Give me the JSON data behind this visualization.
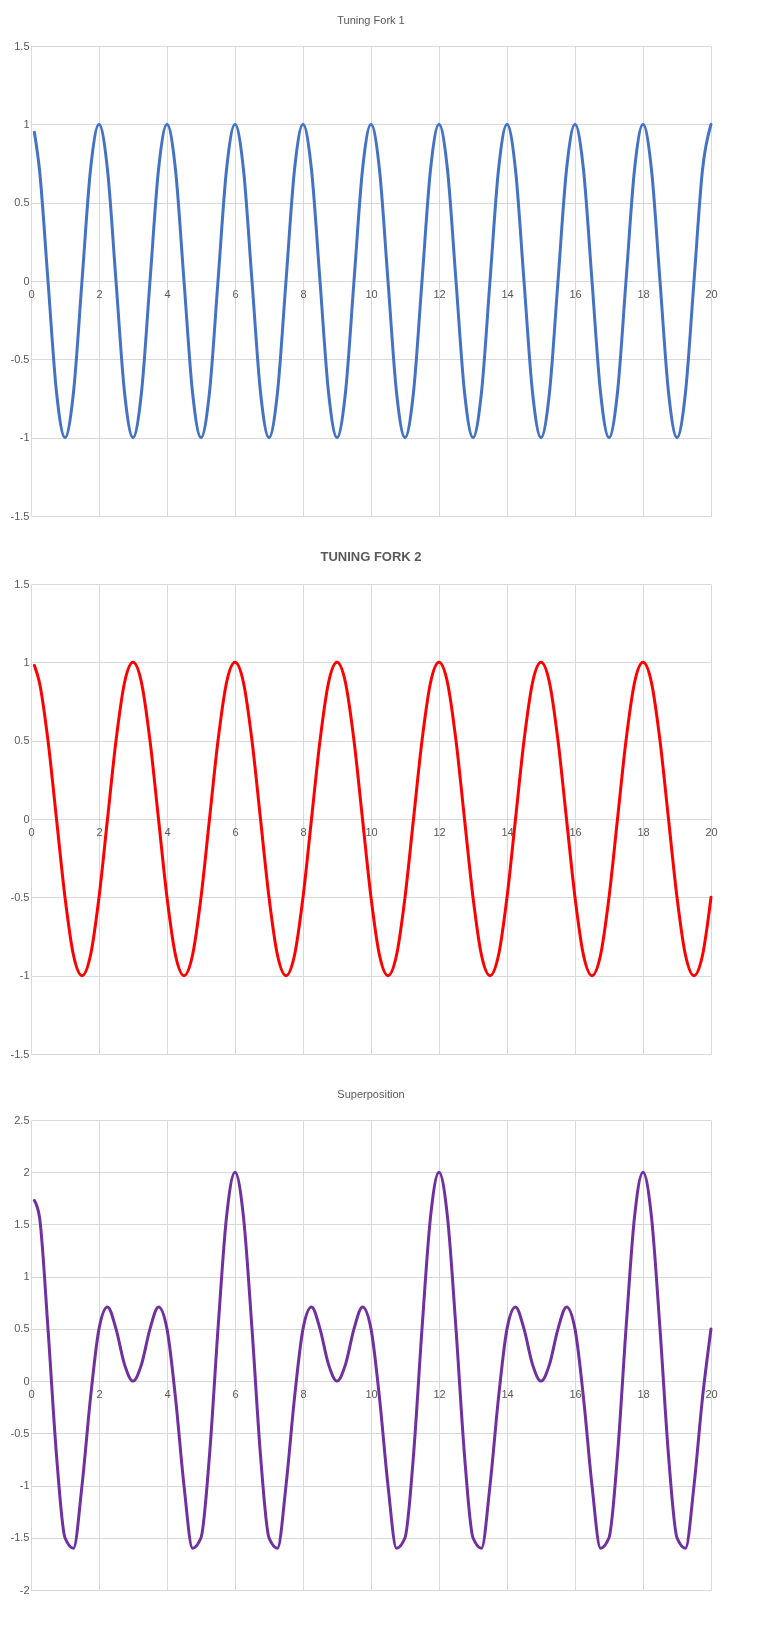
{
  "chart_data": [
    {
      "type": "line",
      "title": "Tuning Fork 1",
      "grid": true,
      "xlim": [
        0,
        20
      ],
      "xticks": [
        0,
        2,
        4,
        6,
        8,
        10,
        12,
        14,
        16,
        18,
        20
      ],
      "ylim": [
        -1.5,
        1.5
      ],
      "yticks": [
        -1.5,
        -1,
        -0.5,
        0,
        0.5,
        1,
        1.5
      ],
      "x": [
        0.1,
        0.25,
        0.5,
        0.75,
        1,
        1.25,
        1.5,
        1.75,
        2,
        2.25,
        2.5,
        2.75,
        3,
        3.25,
        3.5,
        3.75,
        4,
        4.25,
        4.5,
        4.75,
        5,
        5.25,
        5.5,
        5.75,
        6,
        6.25,
        6.5,
        6.75,
        7,
        7.25,
        7.5,
        7.75,
        8,
        8.25,
        8.5,
        8.75,
        9,
        9.25,
        9.5,
        9.75,
        10,
        10.25,
        10.5,
        10.75,
        11,
        11.25,
        11.5,
        11.75,
        12,
        12.25,
        12.5,
        12.75,
        13,
        13.25,
        13.5,
        13.75,
        14,
        14.25,
        14.5,
        14.75,
        15,
        15.25,
        15.5,
        15.75,
        16,
        16.25,
        16.5,
        16.75,
        17,
        17.25,
        17.5,
        17.75,
        18,
        18.25,
        18.5,
        18.75,
        19,
        19.25,
        19.5,
        19.75,
        20
      ],
      "series": [
        {
          "color": "#4472c4",
          "values": [
            0.95,
            0.71,
            0,
            -0.71,
            -1,
            -0.71,
            0,
            0.71,
            1,
            0.71,
            0,
            -0.71,
            -1,
            -0.71,
            0,
            0.71,
            1,
            0.71,
            0,
            -0.71,
            -1,
            -0.71,
            0,
            0.71,
            1,
            0.71,
            0,
            -0.71,
            -1,
            -0.71,
            0,
            0.71,
            1,
            0.71,
            0,
            -0.71,
            -1,
            -0.71,
            0,
            0.71,
            1,
            0.71,
            0,
            -0.71,
            -1,
            -0.71,
            0,
            0.71,
            1,
            0.71,
            0,
            -0.71,
            -1,
            -0.71,
            0,
            0.71,
            1,
            0.71,
            0,
            -0.71,
            -1,
            -0.71,
            0,
            0.71,
            1,
            0.71,
            0,
            -0.71,
            -1,
            -0.71,
            0,
            0.71,
            1,
            0.71,
            0,
            -0.71,
            -1,
            -0.71,
            0,
            0.71,
            1
          ]
        }
      ]
    },
    {
      "type": "line",
      "title": "TUNING FORK 2",
      "grid": true,
      "xlim": [
        0,
        20
      ],
      "xticks": [
        0,
        2,
        4,
        6,
        8,
        10,
        12,
        14,
        16,
        18,
        20
      ],
      "ylim": [
        -1.5,
        1.5
      ],
      "yticks": [
        -1.5,
        -1,
        -0.5,
        0,
        0.5,
        1,
        1.5
      ],
      "x": [
        0.1,
        0.25,
        0.5,
        0.75,
        1,
        1.25,
        1.5,
        1.75,
        2,
        2.25,
        2.5,
        2.75,
        3,
        3.25,
        3.5,
        3.75,
        4,
        4.25,
        4.5,
        4.75,
        5,
        5.25,
        5.5,
        5.75,
        6,
        6.25,
        6.5,
        6.75,
        7,
        7.25,
        7.5,
        7.75,
        8,
        8.25,
        8.5,
        8.75,
        9,
        9.25,
        9.5,
        9.75,
        10,
        10.25,
        10.5,
        10.75,
        11,
        11.25,
        11.5,
        11.75,
        12,
        12.25,
        12.5,
        12.75,
        13,
        13.25,
        13.5,
        13.75,
        14,
        14.25,
        14.5,
        14.75,
        15,
        15.25,
        15.5,
        15.75,
        16,
        16.25,
        16.5,
        16.75,
        17,
        17.25,
        17.5,
        17.75,
        18,
        18.25,
        18.5,
        18.75,
        19,
        19.25,
        19.5,
        19.75,
        20
      ],
      "series": [
        {
          "color": "#ff0000",
          "values": [
            0.98,
            0.87,
            0.5,
            0,
            -0.5,
            -0.87,
            -1,
            -0.87,
            -0.5,
            0,
            0.5,
            0.87,
            1,
            0.87,
            0.5,
            0,
            -0.5,
            -0.87,
            -1,
            -0.87,
            -0.5,
            0,
            0.5,
            0.87,
            1,
            0.87,
            0.5,
            0,
            -0.5,
            -0.87,
            -1,
            -0.87,
            -0.5,
            0,
            0.5,
            0.87,
            1,
            0.87,
            0.5,
            0,
            -0.5,
            -0.87,
            -1,
            -0.87,
            -0.5,
            0,
            0.5,
            0.87,
            1,
            0.87,
            0.5,
            0,
            -0.5,
            -0.87,
            -1,
            -0.87,
            -0.5,
            0,
            0.5,
            0.87,
            1,
            0.87,
            0.5,
            0,
            -0.5,
            -0.87,
            -1,
            -0.87,
            -0.5,
            0,
            0.5,
            0.87,
            1,
            0.87,
            0.5,
            0,
            -0.5,
            -0.87,
            -1,
            -0.87,
            -0.5
          ]
        }
      ]
    },
    {
      "type": "line",
      "title": "Superposition",
      "grid": true,
      "xlim": [
        0,
        20
      ],
      "xticks": [
        0,
        2,
        4,
        6,
        8,
        10,
        12,
        14,
        16,
        18,
        20
      ],
      "ylim": [
        -2,
        2.5
      ],
      "yticks": [
        -2,
        -1.5,
        -1,
        -0.5,
        0,
        0.5,
        1,
        1.5,
        2,
        2.5
      ],
      "x": [
        0.1,
        0.25,
        0.5,
        0.75,
        1,
        1.25,
        1.5,
        1.75,
        2,
        2.25,
        2.5,
        2.75,
        3,
        3.25,
        3.5,
        3.75,
        4,
        4.25,
        4.5,
        4.75,
        5,
        5.25,
        5.5,
        5.75,
        6,
        6.25,
        6.5,
        6.75,
        7,
        7.25,
        7.5,
        7.75,
        8,
        8.25,
        8.5,
        8.75,
        9,
        9.25,
        9.5,
        9.75,
        10,
        10.25,
        10.5,
        10.75,
        11,
        11.25,
        11.5,
        11.75,
        12,
        12.25,
        12.5,
        12.75,
        13,
        13.25,
        13.5,
        13.75,
        14,
        14.25,
        14.5,
        14.75,
        15,
        15.25,
        15.5,
        15.75,
        16,
        16.25,
        16.5,
        16.75,
        17,
        17.25,
        17.5,
        17.75,
        18,
        18.25,
        18.5,
        18.75,
        19,
        19.25,
        19.5,
        19.75,
        20
      ],
      "series": [
        {
          "color": "#7030a0",
          "values": [
            1.73,
            1.57,
            0.5,
            -0.71,
            -1.5,
            -1.6,
            -1,
            -0.16,
            0.5,
            0.71,
            0.5,
            0.16,
            0,
            0.16,
            0.5,
            0.71,
            0.5,
            -0.16,
            -1,
            -1.6,
            -1.5,
            -0.71,
            0.5,
            1.57,
            2,
            1.57,
            0.5,
            -0.71,
            -1.5,
            -1.6,
            -1,
            -0.16,
            0.5,
            0.71,
            0.5,
            0.16,
            0,
            0.16,
            0.5,
            0.71,
            0.5,
            -0.16,
            -1,
            -1.6,
            -1.5,
            -0.71,
            0.5,
            1.57,
            2,
            1.57,
            0.5,
            -0.71,
            -1.5,
            -1.6,
            -1,
            -0.16,
            0.5,
            0.71,
            0.5,
            0.16,
            0,
            0.16,
            0.5,
            0.71,
            0.5,
            -0.16,
            -1,
            -1.6,
            -1.5,
            -0.71,
            0.5,
            1.57,
            2,
            1.57,
            0.5,
            -0.71,
            -1.5,
            -1.6,
            -1,
            -0.16,
            0.5
          ]
        }
      ]
    }
  ]
}
